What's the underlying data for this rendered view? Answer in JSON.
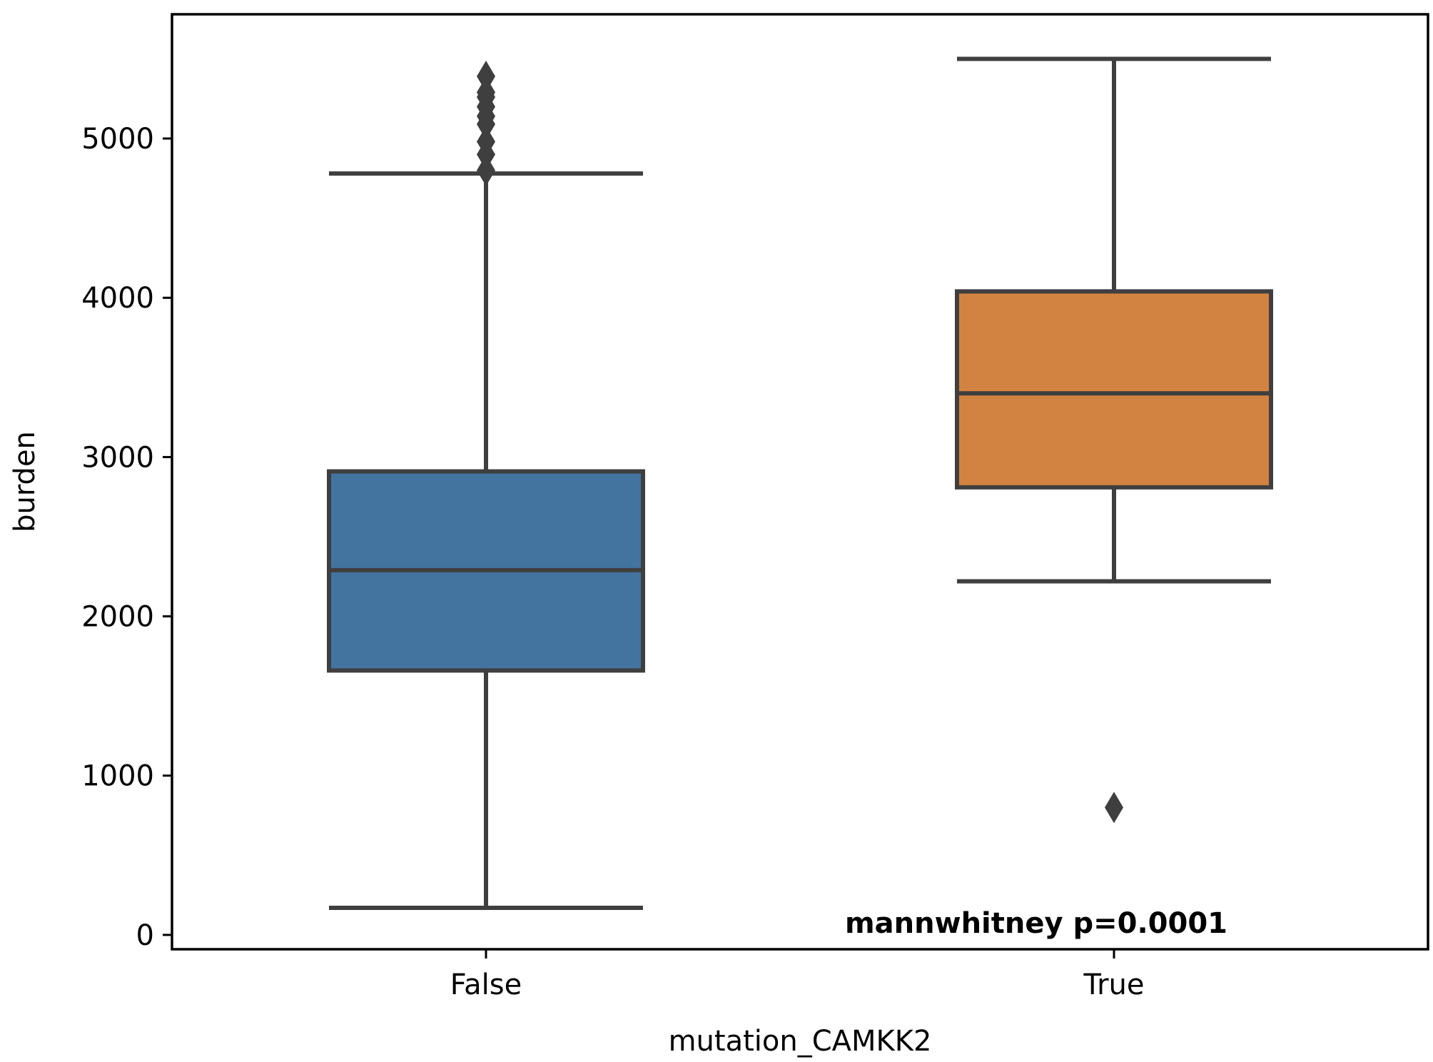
{
  "chart_data": {
    "type": "box",
    "xlabel": "mutation_CAMKK2",
    "ylabel": "burden",
    "ylim": [
      -90,
      5780
    ],
    "yticks": [
      0,
      1000,
      2000,
      3000,
      4000,
      5000
    ],
    "grid": false,
    "annotation": "mannwhitney p=0.0001",
    "categories": [
      "False",
      "True"
    ],
    "boxes": [
      {
        "category": "False",
        "color": "#4374a0",
        "whisker_low": 170,
        "q1": 1660,
        "median": 2290,
        "q3": 2910,
        "whisker_high": 4780,
        "outliers": [
          4800,
          4900,
          4980,
          5090,
          5140,
          5200,
          5260,
          5290,
          5390
        ]
      },
      {
        "category": "True",
        "color": "#d38341",
        "whisker_low": 2220,
        "q1": 2810,
        "median": 3400,
        "q3": 4040,
        "whisker_high": 5500,
        "outliers": [
          800
        ]
      }
    ]
  }
}
